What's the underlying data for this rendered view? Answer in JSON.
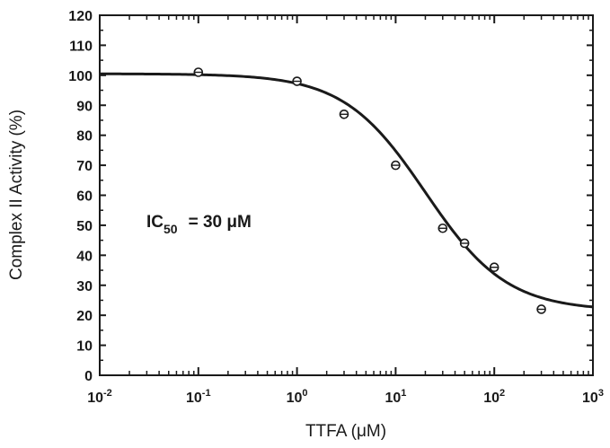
{
  "chart_data": {
    "type": "scatter",
    "xlabel": "TTFA (μM)",
    "ylabel": "Complex II Activity (%)",
    "xscale": "log",
    "xlim": [
      0.01,
      1000
    ],
    "ylim": [
      0,
      120
    ],
    "x_tick_exponents": [
      -2,
      -1,
      0,
      1,
      2,
      3
    ],
    "x_tick_base": "10",
    "y_ticks": [
      0,
      10,
      20,
      30,
      40,
      50,
      60,
      70,
      80,
      90,
      100,
      110,
      120
    ],
    "grid": false,
    "series": [
      {
        "marker": "circle",
        "x": [
          0.1,
          1,
          3,
          10,
          30,
          50,
          100,
          300
        ],
        "y": [
          101,
          98,
          87,
          70,
          49,
          44,
          36,
          22
        ]
      }
    ],
    "fit_curve": {
      "model": "sigmoid",
      "top": 100.5,
      "bottom": 21.5,
      "ic50": 20,
      "hill": 1.05
    },
    "annotation": {
      "prefix": "IC",
      "subscript": "50",
      "text": "=  30 μM"
    }
  }
}
